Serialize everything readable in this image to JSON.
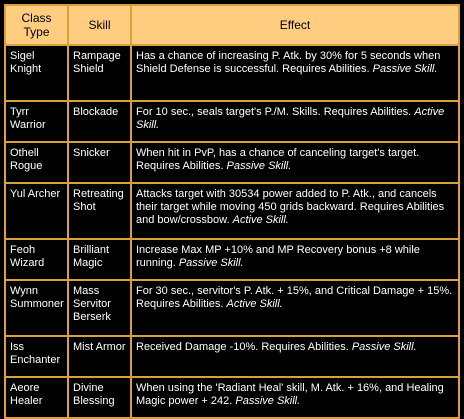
{
  "header": {
    "class_type": "Class\nType",
    "skill": "Skill",
    "effect": "Effect"
  },
  "rows": [
    {
      "class_type": "Sigel Knight",
      "skill": "Rampage Shield",
      "effect": "Has a chance of increasing P. Atk.  by 30% for 5 seconds when Shield Defense is successful. Requires Abilities. ",
      "skill_type": "Passive Skill."
    },
    {
      "class_type": "Tyrr Warrior",
      "skill": "Blockade",
      "effect": "For 10 sec., seals target's P./M. Skills. Requires Abilities. ",
      "skill_type": "Active Skill."
    },
    {
      "class_type": "Othell Rogue",
      "skill": "Snicker",
      "effect": "When hit in PvP, has a chance of canceling target's target. Requires Abilities. ",
      "skill_type": "Passive Skill."
    },
    {
      "class_type": "Yul Archer",
      "skill": "Retreating Shot",
      "effect": "Attacks target with 30534 power added to P. Atk., and cancels their target while moving 450 grids backward. Requires Abilities and bow/crossbow. ",
      "skill_type": "Active Skill."
    },
    {
      "class_type": "Feoh Wizard",
      "skill": "Brilliant Magic",
      "effect": "Increase Max MP +10% and MP Recovery bonus +8 while running. ",
      "skill_type": "Passive Skill."
    },
    {
      "class_type": "Wynn Summoner",
      "skill": "Mass Servitor Berserk",
      "effect": "For 30 sec., servitor's P. Atk. + 15%, and Critical Damage + 15%. Requires Abilities. ",
      "skill_type": "Active Skill."
    },
    {
      "class_type": "Iss Enchanter",
      "skill": "Mist Armor",
      "effect": "Received Damage -10%. Requires Abilities. ",
      "skill_type": "Passive Skill."
    },
    {
      "class_type": "Aeore Healer",
      "skill": "Divine Blessing",
      "effect": "When using the 'Radiant Heal' skill, M. Atk. + 16%, and Healing Magic power + 242. ",
      "skill_type": "Passive Skill."
    }
  ]
}
